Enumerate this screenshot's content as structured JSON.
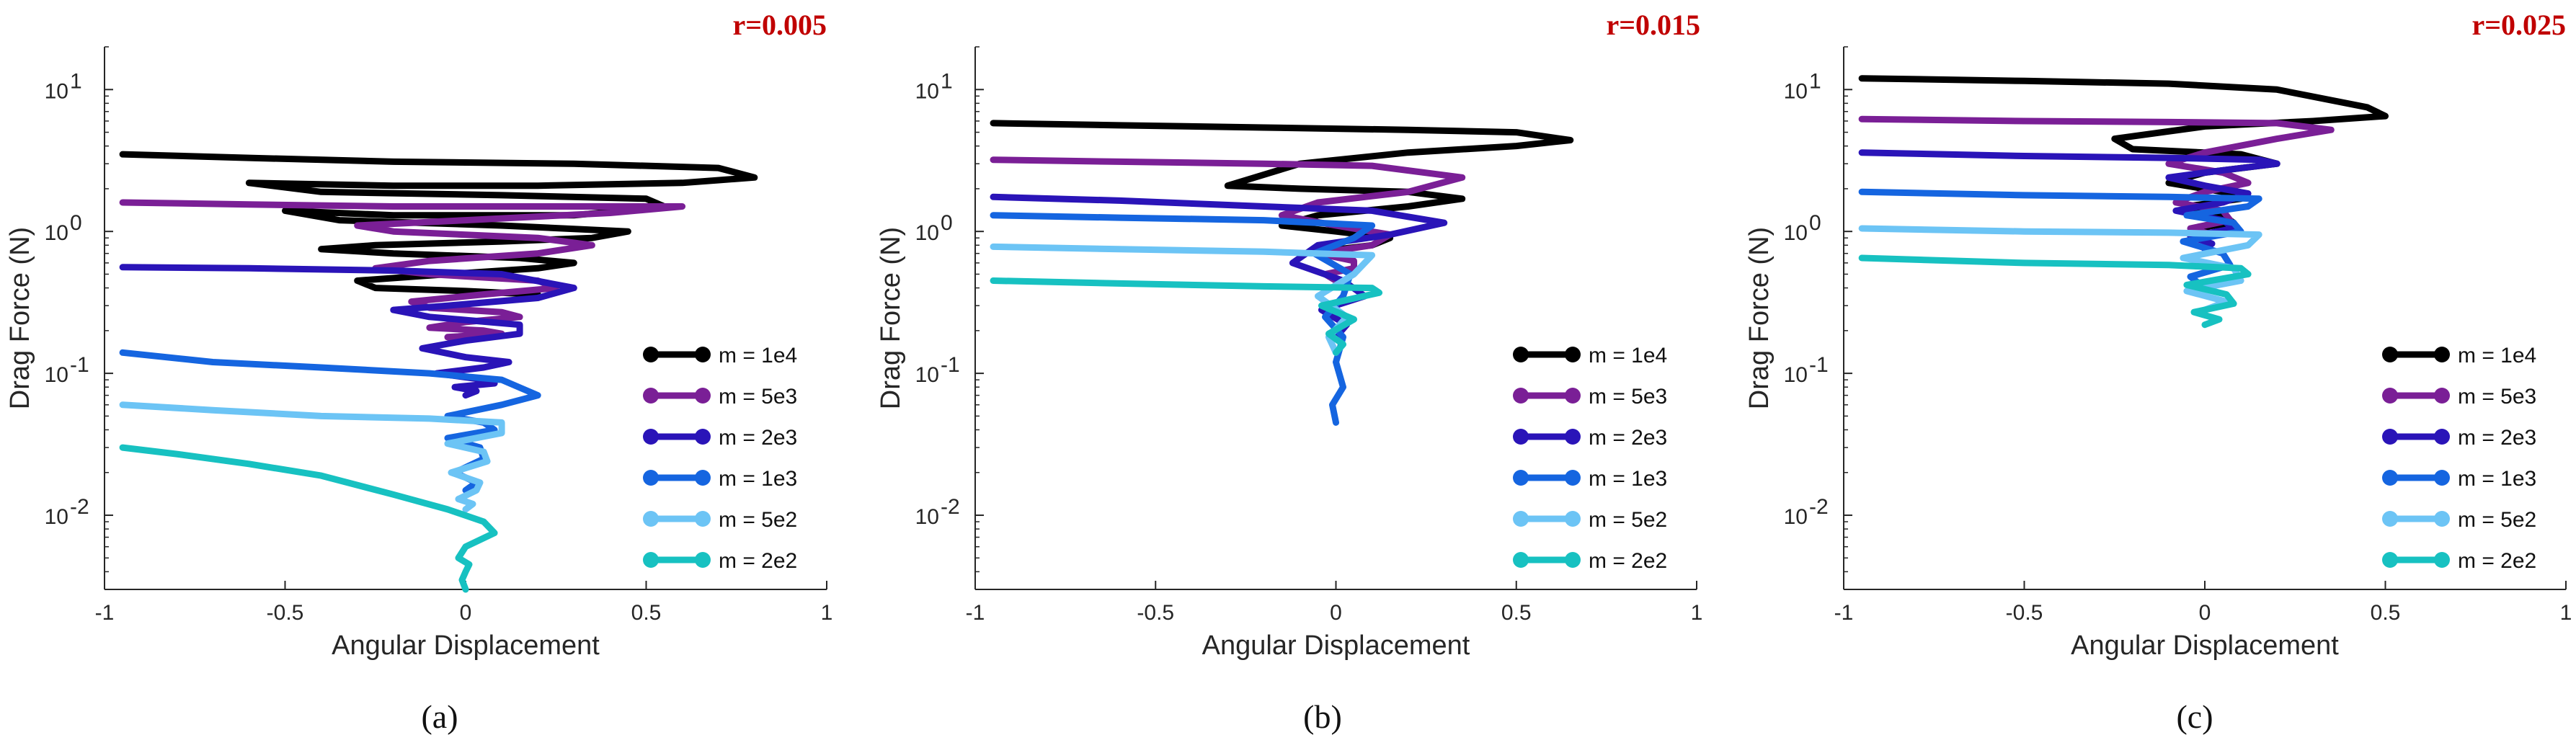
{
  "colors": {
    "r_label": "#c00000",
    "axes": "#262626",
    "series": {
      "m = 1e4": "#000000",
      "m = 5e3": "#7a1f96",
      "m = 2e3": "#2a14b8",
      "m = 1e3": "#1565e0",
      "m = 5e2": "#6cc4f5",
      "m = 2e2": "#17c1c1"
    }
  },
  "chart_data": [
    {
      "type": "line",
      "panel_caption": "(a)",
      "r_label": "r=0.005",
      "xlabel": "Angular Displacement",
      "ylabel": "Drag Force (N)",
      "xlim": [
        -1,
        1
      ],
      "ylim": [
        0.003,
        20
      ],
      "yscale": "log",
      "x_ticks": [
        "-1",
        "-0.5",
        "0",
        "0.5",
        "1"
      ],
      "y_ticks": [
        {
          "base": "10",
          "exp": "1",
          "value": 10
        },
        {
          "base": "10",
          "exp": "0",
          "value": 1
        },
        {
          "base": "10",
          "exp": "-1",
          "value": 0.1
        },
        {
          "base": "10",
          "exp": "-2",
          "value": 0.01
        }
      ],
      "legend": [
        "m = 1e4",
        "m = 5e3",
        "m = 2e3",
        "m = 1e3",
        "m = 5e2",
        "m = 2e2"
      ],
      "series": [
        {
          "name": "m = 1e4",
          "x": [
            -0.95,
            -0.6,
            -0.2,
            0.3,
            0.7,
            0.8,
            0.6,
            0.2,
            -0.2,
            -0.6,
            -0.4,
            0.1,
            0.5,
            0.55,
            0.3,
            -0.2,
            -0.5,
            -0.35,
            0.1,
            0.45,
            0.35,
            0.1,
            -0.25,
            -0.4,
            -0.2,
            0.15,
            0.3,
            0.2,
            -0.05,
            -0.3,
            -0.25,
            0.0,
            0.2
          ],
          "y": [
            3.5,
            3.3,
            3.1,
            3.0,
            2.8,
            2.4,
            2.2,
            2.1,
            2.1,
            2.2,
            1.9,
            1.8,
            1.7,
            1.5,
            1.3,
            1.3,
            1.4,
            1.2,
            1.1,
            1.0,
            0.9,
            0.85,
            0.8,
            0.75,
            0.7,
            0.65,
            0.6,
            0.55,
            0.5,
            0.45,
            0.4,
            0.38,
            0.36
          ]
        },
        {
          "name": "m = 5e3",
          "x": [
            -0.95,
            -0.6,
            -0.2,
            0.3,
            0.6,
            0.4,
            0.0,
            -0.3,
            -0.2,
            0.2,
            0.35,
            0.2,
            -0.1,
            -0.25,
            -0.1,
            0.2,
            0.25,
            0.05,
            -0.15,
            -0.1,
            0.1,
            0.15,
            0.0,
            -0.1,
            0.05,
            0.1,
            -0.05,
            0.0
          ],
          "y": [
            1.6,
            1.55,
            1.5,
            1.5,
            1.5,
            1.35,
            1.2,
            1.1,
            1.0,
            0.9,
            0.8,
            0.7,
            0.62,
            0.55,
            0.5,
            0.45,
            0.4,
            0.36,
            0.32,
            0.29,
            0.27,
            0.25,
            0.23,
            0.21,
            0.2,
            0.19,
            0.18,
            0.17
          ]
        },
        {
          "name": "m = 2e3",
          "x": [
            -0.95,
            -0.6,
            -0.2,
            0.1,
            0.3,
            0.2,
            -0.05,
            -0.2,
            -0.1,
            0.15,
            0.15,
            0.0,
            -0.12,
            0.0,
            0.12,
            0.05,
            -0.08,
            0.05,
            0.08,
            -0.03,
            0.03,
            0.0
          ],
          "y": [
            0.56,
            0.55,
            0.53,
            0.5,
            0.4,
            0.34,
            0.3,
            0.28,
            0.25,
            0.22,
            0.19,
            0.17,
            0.15,
            0.13,
            0.12,
            0.11,
            0.1,
            0.09,
            0.085,
            0.08,
            0.075,
            0.07
          ]
        },
        {
          "name": "m = 1e3",
          "x": [
            -0.95,
            -0.7,
            -0.4,
            -0.1,
            0.1,
            0.2,
            0.1,
            -0.05,
            0.05,
            0.08,
            -0.05,
            0.04,
            0.05,
            -0.03,
            0.03,
            0.0
          ],
          "y": [
            0.14,
            0.12,
            0.11,
            0.1,
            0.09,
            0.07,
            0.06,
            0.05,
            0.045,
            0.04,
            0.035,
            0.03,
            0.025,
            0.02,
            0.017,
            0.015
          ]
        },
        {
          "name": "m = 5e2",
          "x": [
            -0.95,
            -0.7,
            -0.4,
            -0.1,
            0.1,
            0.1,
            -0.05,
            0.05,
            0.06,
            -0.04,
            0.04,
            0.03,
            -0.02,
            0.02,
            0.0
          ],
          "y": [
            0.06,
            0.055,
            0.05,
            0.048,
            0.045,
            0.038,
            0.032,
            0.028,
            0.024,
            0.02,
            0.017,
            0.015,
            0.013,
            0.012,
            0.011
          ]
        },
        {
          "name": "m = 2e2",
          "x": [
            -0.95,
            -0.8,
            -0.6,
            -0.4,
            -0.2,
            -0.05,
            0.05,
            0.08,
            0.0,
            -0.02,
            0.01,
            0.0,
            -0.01,
            0.0
          ],
          "y": [
            0.03,
            0.027,
            0.023,
            0.019,
            0.014,
            0.011,
            0.009,
            0.0075,
            0.006,
            0.005,
            0.0045,
            0.004,
            0.0035,
            0.003
          ]
        }
      ]
    },
    {
      "type": "line",
      "panel_caption": "(b)",
      "r_label": "r=0.015",
      "xlabel": "Angular Displacement",
      "ylabel": "Drag Force (N)",
      "xlim": [
        -1,
        1
      ],
      "ylim": [
        0.003,
        20
      ],
      "yscale": "log",
      "x_ticks": [
        "-1",
        "-0.5",
        "0",
        "0.5",
        "1"
      ],
      "y_ticks": [
        {
          "base": "10",
          "exp": "1",
          "value": 10
        },
        {
          "base": "10",
          "exp": "0",
          "value": 1
        },
        {
          "base": "10",
          "exp": "-1",
          "value": 0.1
        },
        {
          "base": "10",
          "exp": "-2",
          "value": 0.01
        }
      ],
      "legend": [
        "m = 1e4",
        "m = 5e3",
        "m = 2e3",
        "m = 1e3",
        "m = 5e2",
        "m = 2e2"
      ],
      "series": [
        {
          "name": "m = 1e4",
          "x": [
            -0.95,
            -0.6,
            -0.2,
            0.2,
            0.5,
            0.65,
            0.5,
            0.2,
            -0.1,
            -0.3,
            -0.1,
            0.2,
            0.35,
            0.2,
            -0.05,
            -0.15,
            0.0,
            0.15,
            0.1,
            -0.05,
            0.0
          ],
          "y": [
            5.8,
            5.6,
            5.4,
            5.2,
            5.0,
            4.4,
            4.0,
            3.6,
            3.0,
            2.1,
            2.0,
            1.9,
            1.7,
            1.5,
            1.3,
            1.1,
            1.0,
            0.9,
            0.8,
            0.72,
            0.66
          ]
        },
        {
          "name": "m = 5e3",
          "x": [
            -0.95,
            -0.6,
            -0.2,
            0.1,
            0.35,
            0.2,
            -0.05,
            -0.15,
            0.0,
            0.15,
            0.1,
            -0.05,
            0.05,
            0.05,
            -0.03,
            0.0
          ],
          "y": [
            3.2,
            3.1,
            3.0,
            2.9,
            2.4,
            1.9,
            1.6,
            1.3,
            1.1,
            0.95,
            0.8,
            0.7,
            0.62,
            0.55,
            0.5,
            0.45
          ]
        },
        {
          "name": "m = 2e3",
          "x": [
            -0.95,
            -0.6,
            -0.2,
            0.1,
            0.3,
            0.15,
            -0.05,
            -0.12,
            0.02,
            0.08,
            -0.04,
            0.03,
            0.0
          ],
          "y": [
            1.75,
            1.65,
            1.5,
            1.4,
            1.15,
            0.95,
            0.8,
            0.6,
            0.45,
            0.35,
            0.28,
            0.22,
            0.18
          ]
        },
        {
          "name": "m = 1e3",
          "x": [
            -0.95,
            -0.6,
            -0.2,
            0.1,
            0.05,
            -0.06,
            0.04,
            0.02,
            -0.03,
            0.02,
            0.0,
            0.02,
            -0.01,
            0.0
          ],
          "y": [
            1.3,
            1.25,
            1.2,
            1.1,
            0.9,
            0.7,
            0.5,
            0.35,
            0.25,
            0.18,
            0.12,
            0.08,
            0.06,
            0.045
          ]
        },
        {
          "name": "m = 5e2",
          "x": [
            -0.95,
            -0.6,
            -0.2,
            0.1,
            0.05,
            -0.05,
            0.03,
            -0.02,
            0.0
          ],
          "y": [
            0.78,
            0.75,
            0.72,
            0.68,
            0.5,
            0.35,
            0.25,
            0.18,
            0.14
          ]
        },
        {
          "name": "m = 2e2",
          "x": [
            -0.95,
            -0.6,
            -0.2,
            0.1,
            0.12,
            -0.04,
            0.05,
            -0.02,
            0.02,
            0.0
          ],
          "y": [
            0.45,
            0.43,
            0.41,
            0.4,
            0.37,
            0.3,
            0.24,
            0.19,
            0.16,
            0.14
          ]
        }
      ]
    },
    {
      "type": "line",
      "panel_caption": "(c)",
      "r_label": "r=0.025",
      "xlabel": "Angular Displacement",
      "ylabel": "Drag Force (N)",
      "xlim": [
        -1,
        1
      ],
      "ylim": [
        0.003,
        20
      ],
      "yscale": "log",
      "x_ticks": [
        "-1",
        "-0.5",
        "0",
        "0.5",
        "1"
      ],
      "y_ticks": [
        {
          "base": "10",
          "exp": "1",
          "value": 10
        },
        {
          "base": "10",
          "exp": "0",
          "value": 1
        },
        {
          "base": "10",
          "exp": "-1",
          "value": 0.1
        },
        {
          "base": "10",
          "exp": "-2",
          "value": 0.01
        }
      ],
      "legend": [
        "m = 1e4",
        "m = 5e3",
        "m = 2e3",
        "m = 1e3",
        "m = 5e2",
        "m = 2e2"
      ],
      "series": [
        {
          "name": "m = 1e4",
          "x": [
            -0.95,
            -0.5,
            -0.1,
            0.2,
            0.45,
            0.5,
            0.3,
            0.0,
            -0.25,
            -0.2,
            0.1,
            0.2,
            0.0,
            -0.1,
            0.05,
            0.1,
            -0.05,
            0.05,
            0.08,
            -0.03,
            0.03,
            0.0
          ],
          "y": [
            12.0,
            11.5,
            11.0,
            10.0,
            7.5,
            6.5,
            6.0,
            5.5,
            4.5,
            3.8,
            3.5,
            3.0,
            2.6,
            2.2,
            1.9,
            1.7,
            1.5,
            1.3,
            1.15,
            1.05,
            0.95,
            0.9
          ]
        },
        {
          "name": "m = 5e3",
          "x": [
            -0.95,
            -0.5,
            -0.1,
            0.2,
            0.35,
            0.2,
            0.0,
            -0.1,
            0.05,
            0.12,
            0.0,
            -0.08,
            0.05,
            0.07,
            -0.04,
            0.02,
            0.0
          ],
          "y": [
            6.2,
            6.0,
            5.9,
            5.8,
            5.2,
            4.5,
            3.6,
            3.0,
            2.6,
            2.2,
            1.9,
            1.6,
            1.4,
            1.2,
            1.05,
            0.95,
            0.85
          ]
        },
        {
          "name": "m = 2e3",
          "x": [
            -0.95,
            -0.5,
            -0.1,
            0.15,
            0.2,
            0.05,
            -0.1,
            0.0,
            0.12,
            0.05,
            -0.08,
            0.05,
            0.08,
            -0.04,
            0.02,
            0.0
          ],
          "y": [
            3.6,
            3.4,
            3.3,
            3.2,
            3.0,
            2.7,
            2.4,
            2.1,
            1.85,
            1.6,
            1.4,
            1.2,
            1.05,
            0.92,
            0.82,
            0.75
          ]
        },
        {
          "name": "m = 1e3",
          "x": [
            -0.95,
            -0.5,
            -0.1,
            0.15,
            0.12,
            -0.05,
            0.08,
            0.1,
            -0.06,
            0.05,
            0.07,
            -0.04,
            0.0
          ],
          "y": [
            1.9,
            1.8,
            1.75,
            1.7,
            1.5,
            1.3,
            1.15,
            1.0,
            0.85,
            0.7,
            0.58,
            0.48,
            0.4
          ]
        },
        {
          "name": "m = 5e2",
          "x": [
            -0.95,
            -0.5,
            -0.1,
            0.15,
            0.12,
            -0.06,
            0.08,
            0.1,
            -0.05,
            0.06,
            0.0
          ],
          "y": [
            1.05,
            1.0,
            0.98,
            0.95,
            0.8,
            0.65,
            0.55,
            0.45,
            0.38,
            0.32,
            0.28
          ]
        },
        {
          "name": "m = 2e2",
          "x": [
            -0.95,
            -0.5,
            -0.1,
            0.1,
            0.12,
            -0.05,
            0.06,
            0.08,
            -0.03,
            0.04,
            0.0
          ],
          "y": [
            0.65,
            0.6,
            0.58,
            0.55,
            0.5,
            0.42,
            0.36,
            0.31,
            0.27,
            0.24,
            0.22
          ]
        }
      ]
    }
  ]
}
